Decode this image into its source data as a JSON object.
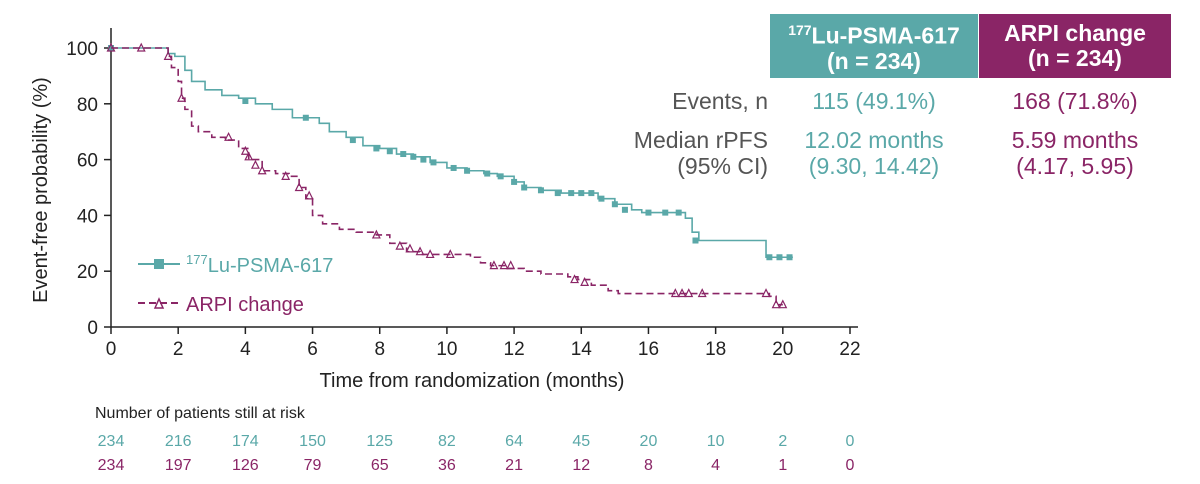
{
  "table": {
    "lu_header_sup": "177",
    "lu_header_name": "Lu-PSMA-617",
    "lu_header_n": "(n = 234)",
    "arpi_header_name": "ARPI change",
    "arpi_header_n": "(n = 234)",
    "events_label": "Events, n",
    "events_lu": "115 (49.1%)",
    "events_arpi": "168 (71.8%)",
    "median_label_1": "Median rPFS",
    "median_label_2": "(95% CI)",
    "median_lu_1": "12.02 months",
    "median_lu_2": "(9.30, 14.42)",
    "median_arpi_1": "5.59 months",
    "median_arpi_2": "(4.17, 5.95)"
  },
  "risk": {
    "title": "Number of patients still at risk",
    "lu": [
      "234",
      "216",
      "174",
      "150",
      "125",
      "82",
      "64",
      "45",
      "20",
      "10",
      "2",
      "0"
    ],
    "arpi": [
      "234",
      "197",
      "126",
      "79",
      "65",
      "36",
      "21",
      "12",
      "8",
      "4",
      "1",
      "0"
    ]
  },
  "colors": {
    "lu": "#5aa8a8",
    "arpi": "#8a2566",
    "header_lu": "#5aa8a8",
    "header_arpi": "#8a2566"
  },
  "chart_data": {
    "type": "line",
    "subtype": "kaplan-meier",
    "xlabel": "Time from randomization (months)",
    "ylabel": "Event-free probability (%)",
    "xlim": [
      0,
      22
    ],
    "ylim": [
      0,
      100
    ],
    "xticks": [
      0,
      2,
      4,
      6,
      8,
      10,
      12,
      14,
      16,
      18,
      20,
      22
    ],
    "yticks": [
      0,
      20,
      40,
      60,
      80,
      100
    ],
    "legend_position": "bottom-left",
    "series": [
      {
        "name": "Lu-PSMA-617",
        "name_sup": "177",
        "style": "solid",
        "marker": "square",
        "points": [
          [
            0,
            100
          ],
          [
            1.6,
            100
          ],
          [
            1.7,
            98
          ],
          [
            1.9,
            97
          ],
          [
            2.2,
            92
          ],
          [
            2.4,
            88
          ],
          [
            2.8,
            85
          ],
          [
            3.3,
            83
          ],
          [
            3.8,
            82
          ],
          [
            4.3,
            80
          ],
          [
            4.8,
            78
          ],
          [
            5.4,
            75
          ],
          [
            6.1,
            75
          ],
          [
            6.2,
            73
          ],
          [
            6.5,
            70
          ],
          [
            7.0,
            68
          ],
          [
            7.5,
            65
          ],
          [
            8.0,
            64
          ],
          [
            8.5,
            62
          ],
          [
            9.0,
            61
          ],
          [
            9.5,
            59
          ],
          [
            10.0,
            57
          ],
          [
            10.6,
            56
          ],
          [
            11.1,
            55
          ],
          [
            11.5,
            54
          ],
          [
            12.0,
            52
          ],
          [
            12.3,
            50
          ],
          [
            12.8,
            49
          ],
          [
            13.4,
            48
          ],
          [
            14.3,
            48
          ],
          [
            14.5,
            46
          ],
          [
            15.0,
            44
          ],
          [
            15.5,
            42
          ],
          [
            15.8,
            41
          ],
          [
            16.9,
            41
          ],
          [
            17.1,
            39
          ],
          [
            17.3,
            34
          ],
          [
            17.5,
            31
          ],
          [
            19.4,
            31
          ],
          [
            19.5,
            25
          ],
          [
            20.3,
            25
          ]
        ],
        "censored": [
          [
            0,
            100
          ],
          [
            4,
            81
          ],
          [
            5.8,
            75
          ],
          [
            7.2,
            67
          ],
          [
            7.9,
            64
          ],
          [
            8.3,
            63
          ],
          [
            8.7,
            62
          ],
          [
            9.0,
            61
          ],
          [
            9.3,
            60
          ],
          [
            9.6,
            59
          ],
          [
            10.2,
            57
          ],
          [
            10.6,
            56
          ],
          [
            11.2,
            55
          ],
          [
            11.6,
            54
          ],
          [
            12.0,
            52
          ],
          [
            12.3,
            50
          ],
          [
            12.8,
            49
          ],
          [
            13.3,
            48
          ],
          [
            13.7,
            48
          ],
          [
            14.0,
            48
          ],
          [
            14.3,
            48
          ],
          [
            14.6,
            46
          ],
          [
            15.0,
            44
          ],
          [
            15.3,
            42
          ],
          [
            16.0,
            41
          ],
          [
            16.5,
            41
          ],
          [
            16.9,
            41
          ],
          [
            17.4,
            31
          ],
          [
            19.6,
            25
          ],
          [
            19.9,
            25
          ],
          [
            20.2,
            25
          ]
        ]
      },
      {
        "name": "ARPI change",
        "style": "dashed",
        "marker": "triangle",
        "points": [
          [
            0,
            100
          ],
          [
            1.6,
            100
          ],
          [
            1.7,
            97
          ],
          [
            1.8,
            93
          ],
          [
            2.0,
            88
          ],
          [
            2.1,
            82
          ],
          [
            2.2,
            78
          ],
          [
            2.4,
            72
          ],
          [
            2.6,
            70
          ],
          [
            3.0,
            68
          ],
          [
            3.4,
            67
          ],
          [
            3.8,
            64
          ],
          [
            4.1,
            60
          ],
          [
            4.5,
            56
          ],
          [
            4.9,
            55
          ],
          [
            5.3,
            54
          ],
          [
            5.6,
            50
          ],
          [
            5.8,
            46
          ],
          [
            6.0,
            40
          ],
          [
            6.3,
            37
          ],
          [
            6.8,
            35
          ],
          [
            7.3,
            34
          ],
          [
            7.9,
            33
          ],
          [
            8.3,
            30
          ],
          [
            8.8,
            27
          ],
          [
            9.2,
            26
          ],
          [
            10.0,
            26
          ],
          [
            10.7,
            25
          ],
          [
            11.0,
            23
          ],
          [
            11.3,
            22
          ],
          [
            11.8,
            21
          ],
          [
            12.3,
            20
          ],
          [
            12.8,
            19
          ],
          [
            13.6,
            18
          ],
          [
            13.9,
            17
          ],
          [
            14.3,
            15
          ],
          [
            14.8,
            13
          ],
          [
            15.1,
            12
          ],
          [
            19.4,
            12
          ],
          [
            19.6,
            11
          ],
          [
            19.8,
            8
          ],
          [
            20.0,
            8
          ]
        ],
        "censored": [
          [
            0,
            100
          ],
          [
            0.9,
            100
          ],
          [
            1.7,
            97
          ],
          [
            2.1,
            82
          ],
          [
            3.5,
            68
          ],
          [
            4.0,
            63
          ],
          [
            4.1,
            61
          ],
          [
            4.3,
            58
          ],
          [
            4.5,
            56
          ],
          [
            5.2,
            54
          ],
          [
            5.6,
            50
          ],
          [
            5.9,
            47
          ],
          [
            7.9,
            33
          ],
          [
            8.6,
            29
          ],
          [
            8.9,
            28
          ],
          [
            9.2,
            27
          ],
          [
            9.5,
            26
          ],
          [
            10.1,
            26
          ],
          [
            11.4,
            22
          ],
          [
            11.7,
            22
          ],
          [
            11.9,
            22
          ],
          [
            13.8,
            17
          ],
          [
            14.1,
            16
          ],
          [
            16.8,
            12
          ],
          [
            17.0,
            12
          ],
          [
            17.2,
            12
          ],
          [
            17.6,
            12
          ],
          [
            19.5,
            12
          ],
          [
            19.8,
            8
          ],
          [
            20.0,
            8
          ]
        ]
      }
    ]
  }
}
